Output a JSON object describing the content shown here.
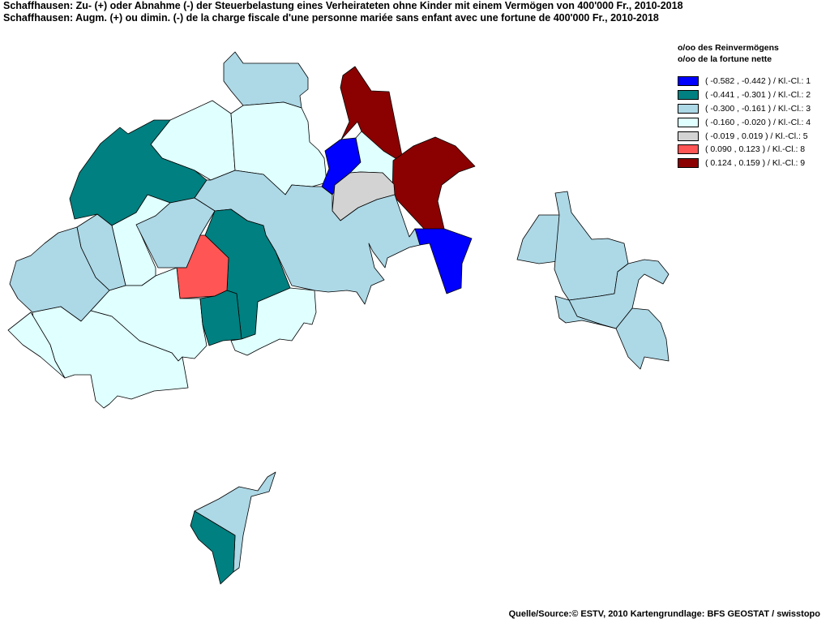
{
  "title": {
    "line1": "Schaffhausen: Zu- (+) oder Abnahme (-) der Steuerbelastung  eines Verheirateten ohne Kinder mit einem Vermögen von 400'000 Fr., 2010-2018",
    "line2": "Schaffhausen: Augm. (+) ou dimin. (-) de la charge fiscale d'une personne mariée sans enfant avec une fortune de 400'000 Fr., 2010-2018"
  },
  "legend": {
    "title_de": "o/oo des Reinvermögens",
    "title_fr": "o/oo de la fortune nette",
    "items": [
      {
        "label": "( -0.582 , -0.442 ) / Kl.-Cl.: 1",
        "color": "#0000ff"
      },
      {
        "label": "( -0.441 , -0.301 ) / Kl.-Cl.: 2",
        "color": "#008080"
      },
      {
        "label": "( -0.300 , -0.161 ) / Kl.-Cl.: 3",
        "color": "#add8e6"
      },
      {
        "label": "( -0.160 , -0.020 ) / Kl.-Cl.: 4",
        "color": "#e0ffff"
      },
      {
        "label": "( -0.019 , 0.019 ) / Kl.-Cl.: 5",
        "color": "#d3d3d3"
      },
      {
        "label": "( 0.090 , 0.123 ) / Kl.-Cl.: 8",
        "color": "#ff5555"
      },
      {
        "label": "( 0.124 , 0.159 ) / Kl.-Cl.: 9",
        "color": "#8b0000"
      }
    ]
  },
  "source": "Quelle/Source:© ESTV, 2010 Kartengrundlage: BFS GEOSTAT / swisstopo",
  "class_colors": {
    "1": "#0000ff",
    "2": "#008080",
    "3": "#add8e6",
    "4": "#e0ffff",
    "5": "#d3d3d3",
    "8": "#ff5555",
    "9": "#8b0000"
  }
}
